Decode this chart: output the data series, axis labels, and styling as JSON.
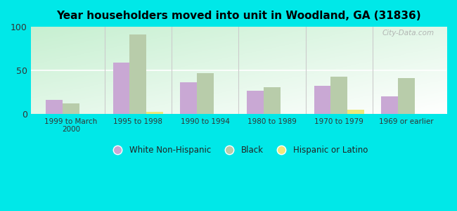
{
  "title": "Year householders moved into unit in Woodland, GA (31836)",
  "categories": [
    "1999 to March\n2000",
    "1995 to 1998",
    "1990 to 1994",
    "1980 to 1989",
    "1970 to 1979",
    "1969 or earlier"
  ],
  "white_non_hispanic": [
    16,
    59,
    36,
    27,
    32,
    20
  ],
  "black": [
    12,
    91,
    47,
    31,
    43,
    41
  ],
  "hispanic_or_latino": [
    0,
    2,
    0,
    0,
    5,
    0
  ],
  "white_color": "#c9a8d4",
  "black_color": "#b8ccaa",
  "hispanic_color": "#ede87a",
  "outer_background": "#00e8e8",
  "ylim": [
    0,
    100
  ],
  "yticks": [
    0,
    50,
    100
  ],
  "bar_width": 0.25,
  "watermark": "City-Data.com"
}
